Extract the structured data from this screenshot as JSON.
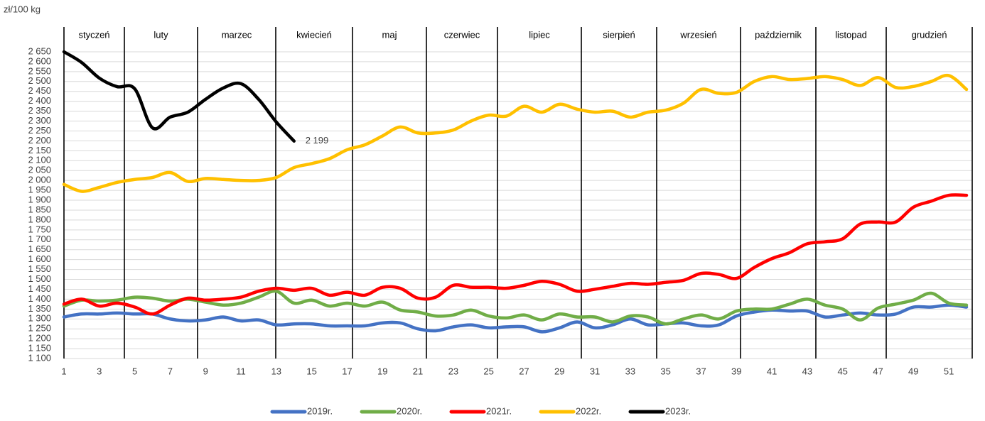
{
  "chart_data": {
    "type": "line",
    "unit_label": "zł/100 kg",
    "months": [
      "styczeń",
      "luty",
      "marzec",
      "kwiecień",
      "maj",
      "czerwiec",
      "lipiec",
      "sierpień",
      "wrzesień",
      "październik",
      "listopad",
      "grudzień"
    ],
    "x": [
      1,
      2,
      3,
      4,
      5,
      6,
      7,
      8,
      9,
      10,
      11,
      12,
      13,
      14,
      15,
      16,
      17,
      18,
      19,
      20,
      21,
      22,
      23,
      24,
      25,
      26,
      27,
      28,
      29,
      30,
      31,
      32,
      33,
      34,
      35,
      36,
      37,
      38,
      39,
      40,
      41,
      42,
      43,
      44,
      45,
      46,
      47,
      48,
      49,
      50,
      51,
      52
    ],
    "xlim": [
      1,
      52
    ],
    "xticks": [
      1,
      3,
      5,
      7,
      9,
      11,
      13,
      15,
      17,
      19,
      21,
      23,
      25,
      27,
      29,
      31,
      33,
      35,
      37,
      39,
      41,
      43,
      45,
      47,
      49,
      51
    ],
    "ylim": [
      1100,
      2650
    ],
    "yticks": [
      {
        "value": 1100,
        "label": "1 100"
      },
      {
        "value": 1150,
        "label": "1 150"
      },
      {
        "value": 1200,
        "label": "1 200"
      },
      {
        "value": 1250,
        "label": "1 250"
      },
      {
        "value": 1300,
        "label": "1 300"
      },
      {
        "value": 1350,
        "label": "1 350"
      },
      {
        "value": 1400,
        "label": "1 400"
      },
      {
        "value": 1450,
        "label": "1 450"
      },
      {
        "value": 1500,
        "label": "1 500"
      },
      {
        "value": 1550,
        "label": "1 550"
      },
      {
        "value": 1600,
        "label": "1 600"
      },
      {
        "value": 1650,
        "label": "1 650"
      },
      {
        "value": 1700,
        "label": "1 700"
      },
      {
        "value": 1750,
        "label": "1 750"
      },
      {
        "value": 1800,
        "label": "1 800"
      },
      {
        "value": 1850,
        "label": "1 850"
      },
      {
        "value": 1900,
        "label": "1 900"
      },
      {
        "value": 1950,
        "label": "1 950"
      },
      {
        "value": 2000,
        "label": "2 000"
      },
      {
        "value": 2050,
        "label": "2 050"
      },
      {
        "value": 2100,
        "label": "2 100"
      },
      {
        "value": 2150,
        "label": "2 150"
      },
      {
        "value": 2200,
        "label": "2 200"
      },
      {
        "value": 2250,
        "label": "2 250"
      },
      {
        "value": 2300,
        "label": "2 300"
      },
      {
        "value": 2350,
        "label": "2 350"
      },
      {
        "value": 2400,
        "label": "2 400"
      },
      {
        "value": 2450,
        "label": "2 450"
      },
      {
        "value": 2500,
        "label": "2 500"
      },
      {
        "value": 2550,
        "label": "2 550"
      },
      {
        "value": 2600,
        "label": "2 600"
      },
      {
        "value": 2650,
        "label": "2 650"
      }
    ],
    "grid": true,
    "legend": "bottom",
    "series": [
      {
        "name": "2019r.",
        "color": "#4472c4",
        "values": [
          1310,
          1325,
          1325,
          1330,
          1325,
          1325,
          1300,
          1290,
          1295,
          1310,
          1290,
          1295,
          1270,
          1275,
          1275,
          1265,
          1265,
          1265,
          1280,
          1280,
          1250,
          1240,
          1260,
          1270,
          1255,
          1260,
          1260,
          1235,
          1255,
          1285,
          1255,
          1270,
          1300,
          1270,
          1275,
          1280,
          1265,
          1270,
          1315,
          1335,
          1345,
          1340,
          1340,
          1310,
          1320,
          1330,
          1320,
          1325,
          1360,
          1360,
          1370,
          1360
        ]
      },
      {
        "name": "2020r.",
        "color": "#70ad47",
        "values": [
          1365,
          1395,
          1390,
          1395,
          1410,
          1405,
          1390,
          1400,
          1385,
          1370,
          1380,
          1410,
          1440,
          1380,
          1395,
          1365,
          1380,
          1365,
          1385,
          1345,
          1335,
          1315,
          1320,
          1345,
          1315,
          1305,
          1320,
          1295,
          1325,
          1310,
          1310,
          1285,
          1315,
          1310,
          1275,
          1300,
          1320,
          1300,
          1340,
          1350,
          1350,
          1375,
          1400,
          1370,
          1350,
          1295,
          1355,
          1375,
          1395,
          1430,
          1380,
          1370
        ]
      },
      {
        "name": "2021r.",
        "color": "#ff0000",
        "values": [
          1375,
          1400,
          1365,
          1380,
          1360,
          1325,
          1370,
          1405,
          1395,
          1400,
          1410,
          1440,
          1455,
          1445,
          1455,
          1420,
          1435,
          1420,
          1460,
          1455,
          1405,
          1410,
          1470,
          1460,
          1460,
          1455,
          1470,
          1490,
          1475,
          1440,
          1450,
          1465,
          1480,
          1475,
          1485,
          1495,
          1530,
          1525,
          1505,
          1560,
          1605,
          1635,
          1680,
          1690,
          1705,
          1780,
          1790,
          1790,
          1865,
          1895,
          1925,
          1925
        ]
      },
      {
        "name": "2022r.",
        "color": "#ffc000",
        "values": [
          1980,
          1945,
          1965,
          1990,
          2005,
          2015,
          2040,
          1995,
          2010,
          2005,
          2000,
          2000,
          2015,
          2065,
          2085,
          2110,
          2155,
          2180,
          2225,
          2270,
          2240,
          2240,
          2255,
          2300,
          2330,
          2325,
          2375,
          2345,
          2385,
          2360,
          2345,
          2350,
          2320,
          2345,
          2355,
          2390,
          2460,
          2440,
          2445,
          2500,
          2525,
          2510,
          2515,
          2525,
          2510,
          2480,
          2520,
          2470,
          2475,
          2500,
          2530,
          2460
        ]
      },
      {
        "name": "2023r.",
        "color": "#000000",
        "values": [
          2650,
          2596,
          2517,
          2474,
          2463,
          2266,
          2320,
          2345,
          2410,
          2467,
          2489,
          2410,
          2295,
          2199,
          null,
          null,
          null,
          null,
          null,
          null,
          null,
          null,
          null,
          null,
          null,
          null,
          null,
          null,
          null,
          null,
          null,
          null,
          null,
          null,
          null,
          null,
          null,
          null,
          null,
          null,
          null,
          null,
          null,
          null,
          null,
          null,
          null,
          null,
          null,
          null,
          null,
          null
        ],
        "value_labels": [
          null,
          null,
          null,
          null,
          null,
          null,
          null,
          null,
          null,
          null,
          null,
          null,
          null,
          "2 199",
          null,
          null,
          null,
          null,
          null,
          null,
          null,
          null,
          null,
          null,
          null,
          null,
          null,
          null,
          null,
          null,
          null,
          null,
          null,
          null,
          null,
          null,
          null,
          null,
          null,
          null,
          null,
          null,
          null,
          null,
          null,
          null,
          null,
          null,
          null,
          null,
          null,
          null
        ]
      }
    ]
  }
}
